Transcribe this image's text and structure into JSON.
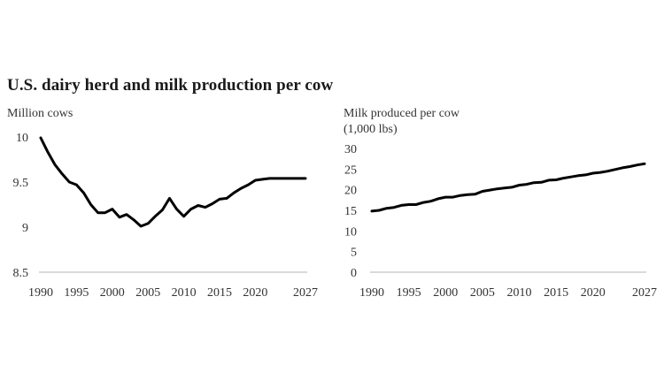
{
  "title": "U.S. dairy herd and milk production per cow",
  "chart_data": [
    {
      "type": "line",
      "ylabel": "Million cows",
      "ylim": [
        8.5,
        10
      ],
      "yticks": [
        "10",
        "9.5",
        "9",
        "8.5"
      ],
      "xticks": [
        "1990",
        "1995",
        "2000",
        "2005",
        "2010",
        "2015",
        "2020",
        "2027"
      ],
      "xlim": [
        1990,
        2027
      ],
      "grid": false,
      "series": [
        {
          "x": [
            1990,
            1991,
            1992,
            1993,
            1994,
            1995,
            1996,
            1997,
            1998,
            1999,
            2000,
            2001,
            2002,
            2003,
            2004,
            2005,
            2006,
            2007,
            2008,
            2009,
            2010,
            2011,
            2012,
            2013,
            2014,
            2015,
            2016,
            2017,
            2018,
            2019,
            2020,
            2021,
            2022,
            2023,
            2024,
            2025,
            2026,
            2027
          ],
          "values": [
            9.99,
            9.83,
            9.69,
            9.59,
            9.5,
            9.47,
            9.38,
            9.25,
            9.16,
            9.16,
            9.2,
            9.11,
            9.14,
            9.08,
            9.01,
            9.04,
            9.12,
            9.19,
            9.32,
            9.2,
            9.12,
            9.2,
            9.24,
            9.22,
            9.26,
            9.31,
            9.32,
            9.38,
            9.43,
            9.47,
            9.52,
            9.53,
            9.54,
            9.54,
            9.54,
            9.54,
            9.54,
            9.54
          ]
        }
      ]
    },
    {
      "type": "line",
      "ylabel": "Milk produced per cow\n(1,000 lbs)",
      "ylabel_lines": [
        "Milk produced per cow",
        "(1,000 lbs)"
      ],
      "ylim": [
        0,
        30
      ],
      "yticks": [
        "30",
        "25",
        "20",
        "15",
        "10",
        "5",
        "0"
      ],
      "xticks": [
        "1990",
        "1995",
        "2000",
        "2005",
        "2010",
        "2015",
        "2020",
        "2027"
      ],
      "xlim": [
        1990,
        2027
      ],
      "grid": false,
      "series": [
        {
          "x": [
            1990,
            1991,
            1992,
            1993,
            1994,
            1995,
            1996,
            1997,
            1998,
            1999,
            2000,
            2001,
            2002,
            2003,
            2004,
            2005,
            2006,
            2007,
            2008,
            2009,
            2010,
            2011,
            2012,
            2013,
            2014,
            2015,
            2016,
            2017,
            2018,
            2019,
            2020,
            2021,
            2022,
            2023,
            2024,
            2025,
            2026,
            2027
          ],
          "values": [
            14.8,
            15.0,
            15.5,
            15.7,
            16.2,
            16.4,
            16.4,
            16.9,
            17.2,
            17.8,
            18.2,
            18.2,
            18.6,
            18.8,
            18.9,
            19.6,
            19.9,
            20.2,
            20.4,
            20.6,
            21.1,
            21.3,
            21.7,
            21.8,
            22.3,
            22.4,
            22.8,
            23.1,
            23.4,
            23.6,
            24.0,
            24.2,
            24.5,
            24.9,
            25.3,
            25.6,
            26.0,
            26.3
          ]
        }
      ]
    }
  ]
}
